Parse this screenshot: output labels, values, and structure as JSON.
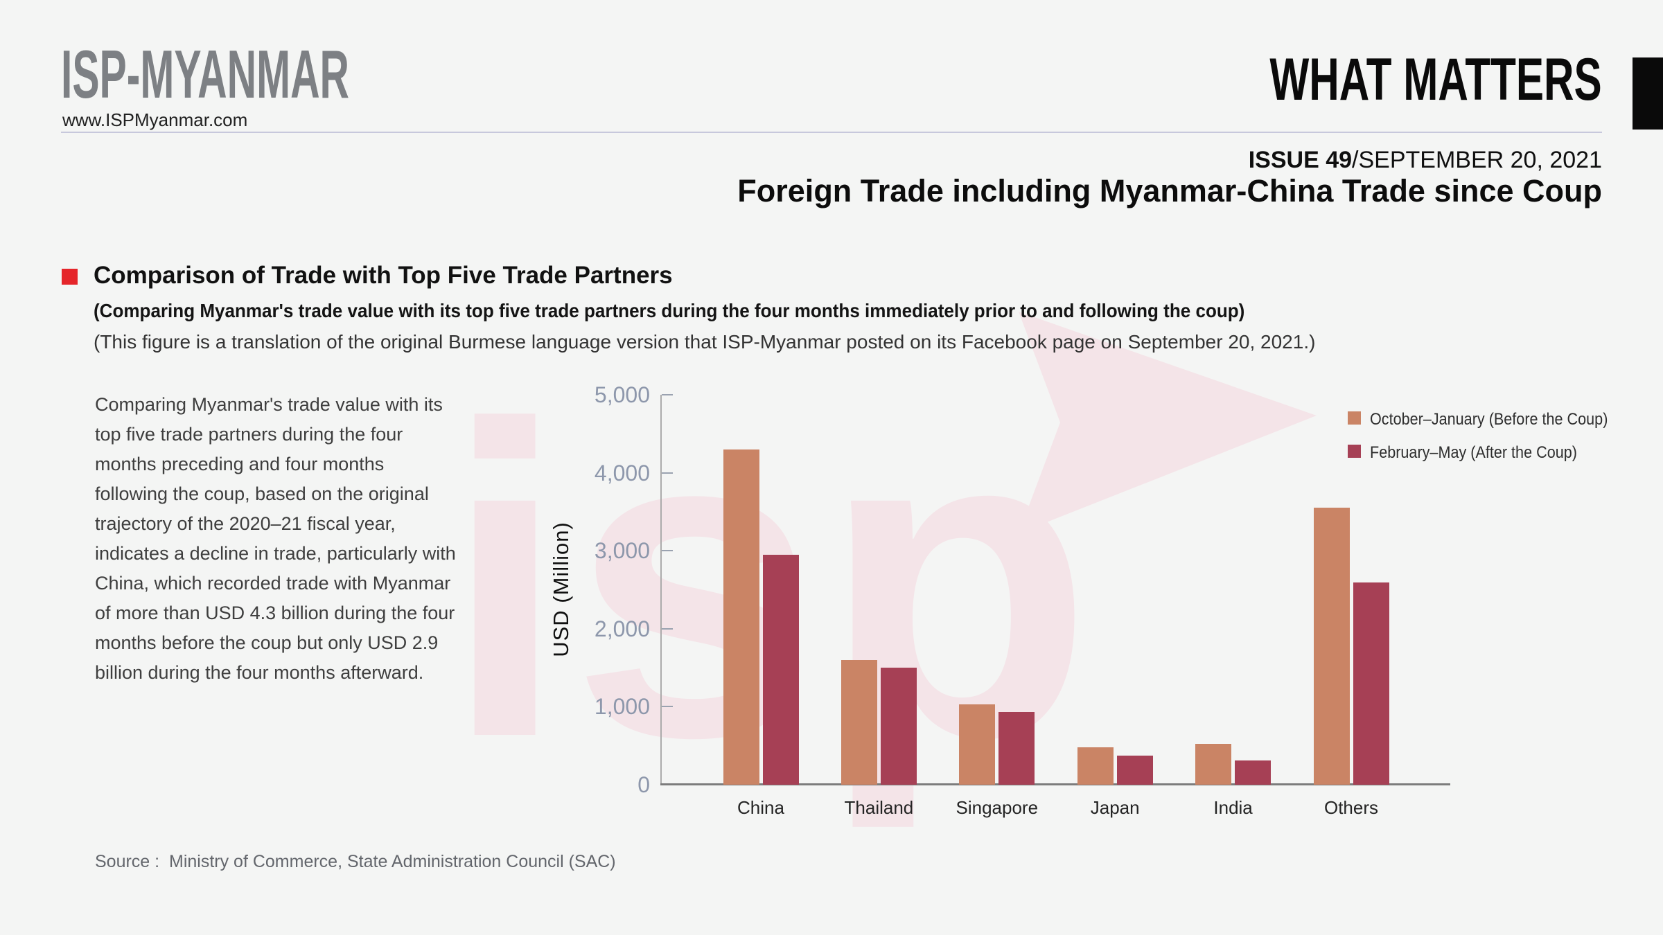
{
  "header": {
    "logo": "ISP-MYANMAR",
    "website": "www.ISPMyanmar.com",
    "brand": "WHAT MATTERS",
    "issue_no": "ISSUE 49",
    "issue_date": "/SEPTEMBER 20, 2021",
    "title": "Foreign Trade including Myanmar-China Trade since Coup"
  },
  "section": {
    "heading": "Comparison of Trade with Top Five Trade Partners",
    "subtitle1": "(Comparing Myanmar's trade value with its top five trade partners during the four months immediately prior to and following the coup)",
    "subtitle2": "(This figure is a translation of the original Burmese language version that ISP-Myanmar posted on its Facebook page on September 20, 2021.)"
  },
  "body_paragraph": "Comparing Myanmar's trade value with its top five trade partners during the four months preceding and four months following the coup, based on the original trajectory of the 2020–21 fiscal year, indicates a decline in trade, particularly with China, which recorded trade with Myanmar of more than USD 4.3 billion during the four months before the coup but only USD 2.9 billion during the four months afterward.",
  "source": "Source :  Ministry of Commerce, State Administration Council (SAC)",
  "watermark": "isp",
  "colors": {
    "background": "#f4f5f4",
    "accent_red": "#e5252a",
    "before_coup": "#ca8465",
    "after_coup": "#a64055",
    "tick_label": "#8d97ab",
    "watermark_pink": "#f4e4e8"
  },
  "chart_data": {
    "type": "bar",
    "title": "",
    "xlabel": "",
    "ylabel": "USD (Million)",
    "ylim": [
      0,
      5000
    ],
    "yticks": [
      0,
      1000,
      2000,
      3000,
      4000,
      5000
    ],
    "ytick_labels": [
      "0",
      "1,000",
      "2,000",
      "3,000",
      "4,000",
      "5,000"
    ],
    "grid": false,
    "legend_position": "top-right",
    "categories": [
      "China",
      "Thailand",
      "Singapore",
      "Japan",
      "India",
      "Others"
    ],
    "series": [
      {
        "name": "October–January (Before the Coup)",
        "color": "#ca8465",
        "values": [
          4300,
          1600,
          1030,
          480,
          520,
          3550
        ]
      },
      {
        "name": "February–May (After the Coup)",
        "color": "#a64055",
        "values": [
          2950,
          1500,
          930,
          370,
          310,
          2590
        ]
      }
    ]
  }
}
